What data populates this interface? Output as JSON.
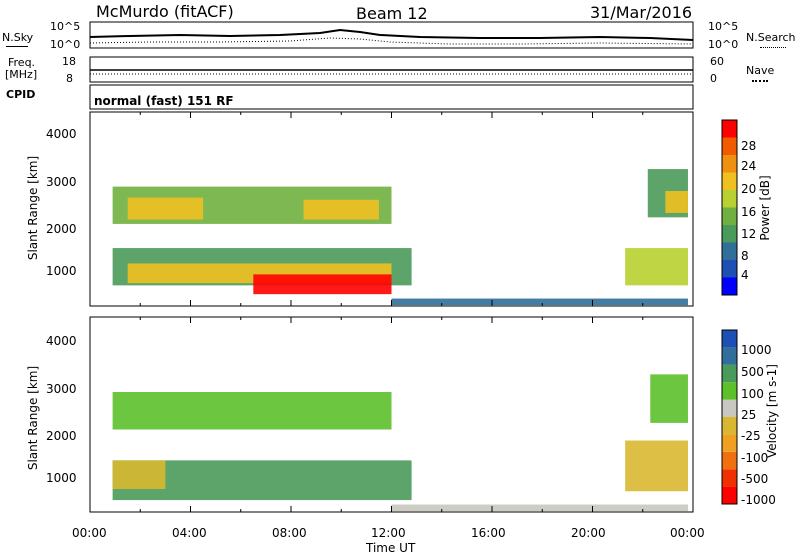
{
  "header": {
    "station": "McMurdo (fitACF)",
    "beam": "Beam 12",
    "date": "31/Mar/2016"
  },
  "noise_panel": {
    "left_label": "N.Sky",
    "right_label": "N.Search",
    "left_ticks": [
      "10^5",
      "10^0"
    ],
    "right_ticks": [
      "10^5",
      "10^0"
    ]
  },
  "freq_panel": {
    "left_label_1": "Freq.",
    "left_label_2": "[MHz]",
    "left_ticks": [
      "18",
      "8"
    ],
    "right_label": "Nave",
    "right_ticks": [
      "60",
      "0"
    ]
  },
  "cpid": {
    "label": "CPID",
    "text": "normal (fast) 151 RF"
  },
  "colors": {
    "power_scale": [
      "#0000ff",
      "#1e4fb4",
      "#2f6f9a",
      "#4a9a5a",
      "#70b040",
      "#b8d030",
      "#f0c020",
      "#f09010",
      "#f05a00",
      "#ff0000"
    ],
    "velocity_scale": [
      "#1e4fb4",
      "#2f6f9a",
      "#4a9a5a",
      "#5cc02a",
      "#c8c8c0",
      "#d8b830",
      "#f0a020",
      "#f07010",
      "#f03000",
      "#ff0000"
    ]
  },
  "chart_data": [
    {
      "type": "heatmap",
      "name": "power",
      "ylabel": "Slant Range [km]",
      "yticks": [
        "4000",
        "3000",
        "2000",
        "1000"
      ],
      "ylim": [
        180,
        4600
      ],
      "xlim": [
        0,
        24
      ],
      "colorbar_label": "Power [dB]",
      "colorbar_ticks": [
        "28",
        "24",
        "20",
        "16",
        "12",
        "8",
        "4"
      ],
      "colorbar_range": [
        0,
        32
      ],
      "regions": [
        {
          "x0": 0.9,
          "x1": 12.0,
          "y0": 2050,
          "y1": 2900,
          "value": 14
        },
        {
          "x0": 1.5,
          "x1": 4.5,
          "y0": 2150,
          "y1": 2650,
          "value": 22
        },
        {
          "x0": 8.5,
          "x1": 11.5,
          "y0": 2150,
          "y1": 2600,
          "value": 20
        },
        {
          "x0": 0.9,
          "x1": 12.8,
          "y0": 650,
          "y1": 1500,
          "value": 12
        },
        {
          "x0": 1.5,
          "x1": 12.0,
          "y0": 700,
          "y1": 1150,
          "value": 22
        },
        {
          "x0": 6.5,
          "x1": 12.0,
          "y0": 450,
          "y1": 900,
          "value": 30
        },
        {
          "x0": 21.3,
          "x1": 23.8,
          "y0": 650,
          "y1": 1500,
          "value": 18
        },
        {
          "x0": 22.2,
          "x1": 23.8,
          "y0": 2200,
          "y1": 3300,
          "value": 12
        },
        {
          "x0": 22.9,
          "x1": 23.8,
          "y0": 2300,
          "y1": 2800,
          "value": 22
        },
        {
          "x0": 12.0,
          "x1": 23.8,
          "y0": 200,
          "y1": 350,
          "value": 8
        }
      ]
    },
    {
      "type": "heatmap",
      "name": "velocity",
      "ylabel": "Slant Range [km]",
      "xlabel": "Time UT",
      "yticks": [
        "4000",
        "3000",
        "2000",
        "1000"
      ],
      "xticks": [
        "00:00",
        "04:00",
        "08:00",
        "12:00",
        "16:00",
        "20:00",
        "00:00"
      ],
      "ylim": [
        180,
        4600
      ],
      "xlim": [
        0,
        24
      ],
      "colorbar_label": "Velocity [m s-1]",
      "colorbar_ticks": [
        "1000",
        "500",
        "100",
        "25",
        "-25",
        "-100",
        "-500",
        "-1000"
      ],
      "regions": [
        {
          "x0": 0.9,
          "x1": 12.0,
          "y0": 2050,
          "y1": 2900,
          "value": 25
        },
        {
          "x0": 0.9,
          "x1": 12.8,
          "y0": 450,
          "y1": 1350,
          "value": 100
        },
        {
          "x0": 0.9,
          "x1": 3.0,
          "y0": 700,
          "y1": 1350,
          "value": -100
        },
        {
          "x0": 21.3,
          "x1": 23.8,
          "y0": 650,
          "y1": 1800,
          "value": -100
        },
        {
          "x0": 22.3,
          "x1": 23.8,
          "y0": 2200,
          "y1": 3300,
          "value": 25
        },
        {
          "x0": 12.0,
          "x1": 23.8,
          "y0": 200,
          "y1": 350,
          "value": -25
        }
      ]
    }
  ]
}
